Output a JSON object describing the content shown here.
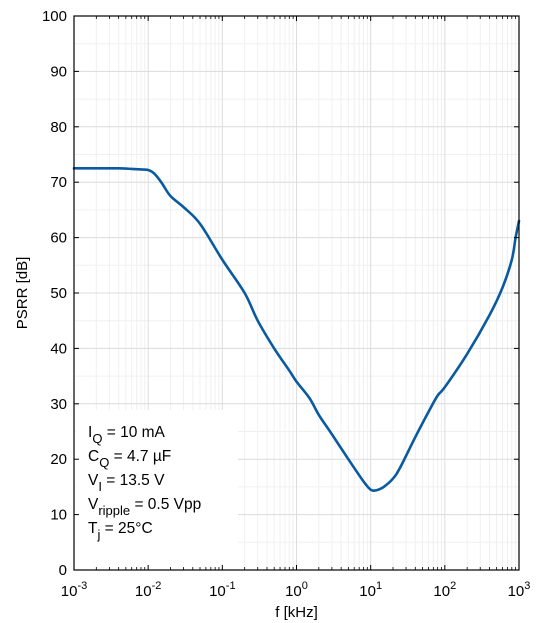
{
  "chart_data": {
    "type": "line",
    "xlabel": "f [kHz]",
    "ylabel": "PSRR [dB]",
    "xscale": "log",
    "xlim": [
      0.001,
      1000
    ],
    "ylim": [
      0,
      100
    ],
    "grid": true,
    "x_ticks": [
      {
        "value": 0.001,
        "base": "10",
        "exp": "-3"
      },
      {
        "value": 0.01,
        "base": "10",
        "exp": "-2"
      },
      {
        "value": 0.1,
        "base": "10",
        "exp": "-1"
      },
      {
        "value": 1,
        "base": "10",
        "exp": "0"
      },
      {
        "value": 10,
        "base": "10",
        "exp": "1"
      },
      {
        "value": 100,
        "base": "10",
        "exp": "2"
      },
      {
        "value": 1000,
        "base": "10",
        "exp": "3"
      }
    ],
    "y_ticks": [
      0,
      10,
      20,
      30,
      40,
      50,
      60,
      70,
      80,
      90,
      100
    ],
    "series": [
      {
        "color": "#0a5aa0",
        "x": [
          0.001,
          0.002,
          0.004,
          0.006,
          0.008,
          0.01,
          0.012,
          0.015,
          0.02,
          0.03,
          0.05,
          0.1,
          0.2,
          0.3,
          0.5,
          0.8,
          1,
          1.5,
          2,
          3,
          5,
          8,
          10,
          12,
          15,
          20,
          25,
          40,
          60,
          80,
          100,
          200,
          400,
          600,
          800,
          900,
          1000
        ],
        "y": [
          72.5,
          72.5,
          72.5,
          72.4,
          72.3,
          72.2,
          71.6,
          70.0,
          67.5,
          65.5,
          62.5,
          56.0,
          50.0,
          45.0,
          40.0,
          36.0,
          34.0,
          31.0,
          28.0,
          24.5,
          20.0,
          16.0,
          14.5,
          14.4,
          15.0,
          16.5,
          18.5,
          24.0,
          28.5,
          31.5,
          33.0,
          39.0,
          46.0,
          51.0,
          56.0,
          60.0,
          63.0
        ]
      }
    ],
    "annotations": [
      {
        "main": "I",
        "sub": "Q",
        "rest": " = 10 mA"
      },
      {
        "main": "C",
        "sub": "Q",
        "rest": " = 4.7 µF"
      },
      {
        "main": "V",
        "sub": "I",
        "rest": " = 13.5 V"
      },
      {
        "main": "V",
        "sub": "ripple",
        "rest": " = 0.5 Vpp"
      },
      {
        "main": "T",
        "sub": "j",
        "rest": " = 25°C"
      }
    ]
  }
}
